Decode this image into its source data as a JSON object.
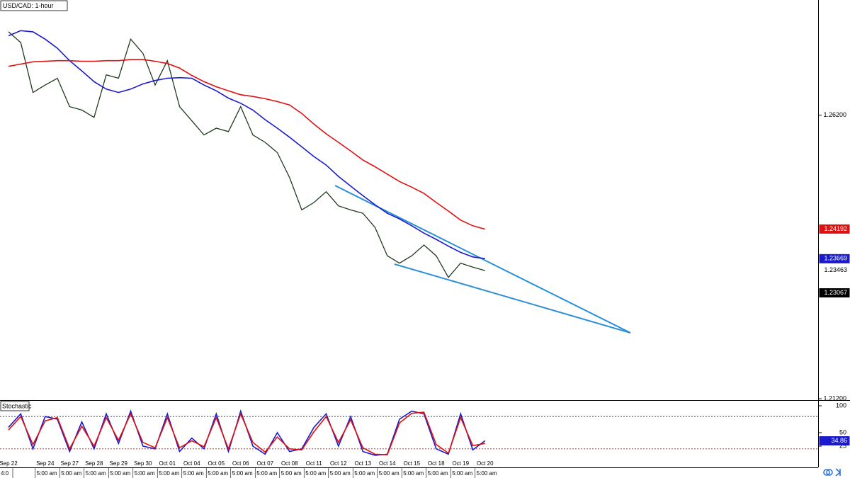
{
  "chart_data": [
    {
      "type": "line",
      "title": "USD/CAD: 1-hour",
      "categories": [
        "Sep 22",
        null,
        null,
        "Sep 24",
        null,
        "Sep 27",
        null,
        "Sep 28",
        null,
        "Sep 29",
        null,
        "Sep 30",
        null,
        "Oct 01",
        null,
        "Oct 04",
        null,
        "Oct 05",
        null,
        "Oct 06",
        null,
        "Oct 07",
        null,
        "Oct 08",
        null,
        "Oct 11",
        null,
        "Oct 12",
        null,
        "Oct 13",
        null,
        "Oct 14",
        null,
        "Oct 15",
        null,
        "Oct 18",
        null,
        "Oct 19",
        null,
        "Oct 20"
      ],
      "time_labels": [
        "4:0",
        "5:00 am",
        "5:00 am",
        "5:00 am",
        "5:00 am",
        "5:00 am",
        "5:00 am",
        "5:00 am",
        "5:00 am",
        "5:00 am",
        "5:00 am",
        "5:00 am",
        "5:00 am",
        "5:00 am",
        "5:00 am",
        "5:00 am",
        "5:00 am",
        "5:00 am",
        "5:00 am",
        "5:00 am"
      ],
      "series": [
        {
          "color": "#1f3b1f",
          "values": [
            1.2767,
            1.2748,
            1.266,
            1.2673,
            1.2685,
            1.2635,
            1.2629,
            1.2616,
            1.2691,
            1.2685,
            1.2754,
            1.2729,
            1.2673,
            1.2716,
            1.2635,
            1.261,
            1.2585,
            1.2597,
            1.2591,
            1.2635,
            1.2585,
            1.2572,
            1.2554,
            1.251,
            1.2453,
            1.2466,
            1.2485,
            1.246,
            1.2453,
            1.2447,
            1.2422,
            1.2372,
            1.2359,
            1.2372,
            1.2391,
            1.2372,
            1.2334,
            1.2359,
            1.2352,
            1.2346
          ]
        },
        {
          "color": "#1a1acc",
          "values": [
            1.276,
            1.2769,
            1.2767,
            1.2754,
            1.2738,
            1.2716,
            1.2698,
            1.2679,
            1.2666,
            1.266,
            1.2666,
            1.2675,
            1.2681,
            1.2685,
            1.2686,
            1.2685,
            1.2673,
            1.2663,
            1.265,
            1.2641,
            1.2629,
            1.2612,
            1.2597,
            1.2581,
            1.2564,
            1.2547,
            1.2532,
            1.2512,
            1.2495,
            1.2478,
            1.2462,
            1.2447,
            1.2437,
            1.2425,
            1.2412,
            1.2401,
            1.2389,
            1.2378,
            1.237,
            1.2367
          ]
        },
        {
          "color": "#e01010",
          "values": [
            1.2706,
            1.271,
            1.2714,
            1.2715,
            1.2716,
            1.2716,
            1.2715,
            1.2715,
            1.2716,
            1.2716,
            1.2718,
            1.2718,
            1.2715,
            1.2711,
            1.2703,
            1.269,
            1.2679,
            1.267,
            1.2663,
            1.2656,
            1.2653,
            1.2649,
            1.2644,
            1.2638,
            1.2623,
            1.2604,
            1.2587,
            1.2572,
            1.2557,
            1.2541,
            1.2529,
            1.2516,
            1.2503,
            1.2493,
            1.2482,
            1.2466,
            1.2451,
            1.2435,
            1.2425,
            1.2419
          ]
        }
      ],
      "ylim": [
        1.21176,
        1.2823
      ],
      "yticks": [
        {
          "value": 1.262,
          "label": "1.26200"
        },
        {
          "value": 1.212,
          "label": "1.21200"
        }
      ],
      "price_tags": [
        {
          "value": 1.24192,
          "label": "1.24192",
          "color": "#e01010",
          "text_color": "#ffffff"
        },
        {
          "value": 1.23669,
          "label": "1.23669",
          "color": "#1a1acc",
          "text_color": "#ffffff"
        },
        {
          "value": 1.23463,
          "label": "1.23463",
          "color": "#ffffff",
          "text_color": "#000000"
        },
        {
          "value": 1.23067,
          "label": "1.23067",
          "color": "#000000",
          "text_color": "#ffffff"
        }
      ]
    },
    {
      "type": "line",
      "title": "Stochastic",
      "series": [
        {
          "color": "#1a1acc",
          "values": [
            60,
            85,
            20,
            80,
            75,
            15,
            70,
            20,
            85,
            30,
            90,
            25,
            20,
            85,
            15,
            40,
            20,
            85,
            15,
            90,
            25,
            10,
            50,
            15,
            20,
            60,
            85,
            25,
            80,
            15,
            8,
            10,
            75,
            90,
            85,
            20,
            10,
            85,
            18,
            35
          ]
        },
        {
          "color": "#e01010",
          "values": [
            55,
            80,
            28,
            72,
            78,
            20,
            62,
            25,
            78,
            36,
            85,
            32,
            22,
            78,
            22,
            35,
            24,
            78,
            20,
            85,
            32,
            14,
            42,
            20,
            18,
            52,
            80,
            32,
            74,
            22,
            10,
            9,
            68,
            86,
            88,
            28,
            12,
            78,
            26,
            30
          ]
        }
      ],
      "ylim": [
        -10.5,
        107.9
      ],
      "yticks": [
        100,
        50,
        25
      ],
      "levels": [
        80,
        20
      ],
      "price_tags": [
        {
          "value": 34.86,
          "label": "34.86",
          "color": "#1a1acc",
          "text_color": "#ffffff"
        }
      ]
    }
  ]
}
